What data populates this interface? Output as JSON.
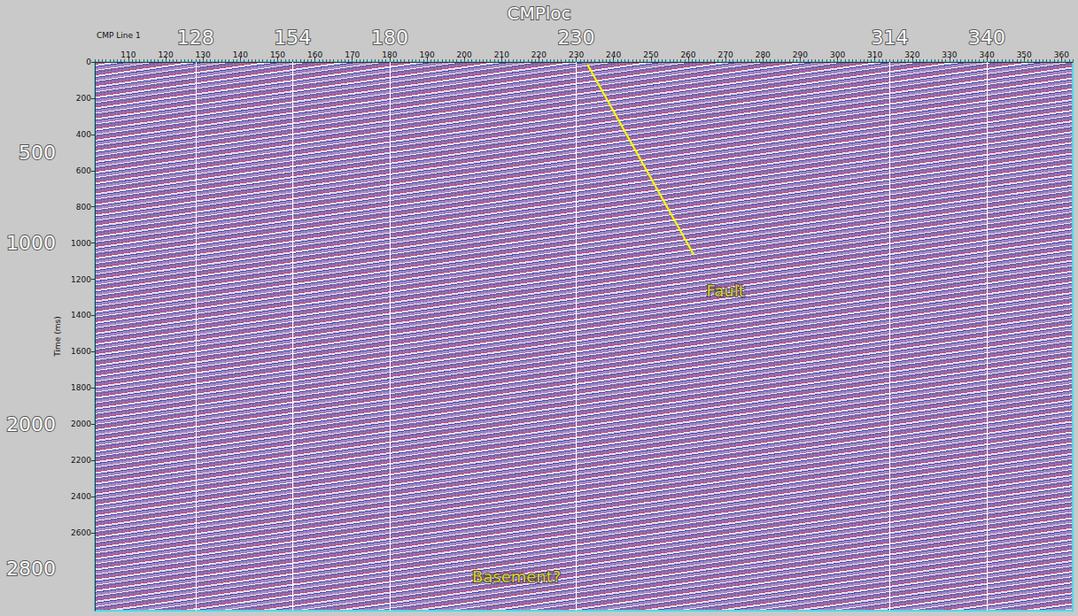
{
  "chart_data": {
    "type": "seismic_section",
    "title": "CMPloc",
    "x_label": "CMP Line 1",
    "y_label": "Time (ms)",
    "xlim": [
      101,
      363
    ],
    "xticks": [
      110,
      120,
      130,
      140,
      150,
      160,
      170,
      180,
      190,
      200,
      210,
      220,
      230,
      240,
      250,
      260,
      270,
      280,
      290,
      300,
      310,
      320,
      330,
      340,
      350,
      360
    ],
    "ylim": [
      0,
      3030
    ],
    "yticks": [
      0,
      200,
      400,
      600,
      800,
      1000,
      1200,
      1400,
      1600,
      1800,
      2000,
      2200,
      2400,
      2600
    ],
    "marked_cmps": [
      128,
      154,
      180,
      230,
      314,
      340
    ],
    "marked_times": [
      500,
      1000,
      2000,
      2800
    ],
    "fault": {
      "x": [
        233,
        261.5
      ],
      "y": [
        15,
        1065
      ]
    },
    "annotations": [
      {
        "text": "Fault",
        "x": 270,
        "y": 1265
      },
      {
        "text": "Basement?",
        "x": 214,
        "y": 2840
      }
    ],
    "color": "#ffff00",
    "grid": false
  }
}
